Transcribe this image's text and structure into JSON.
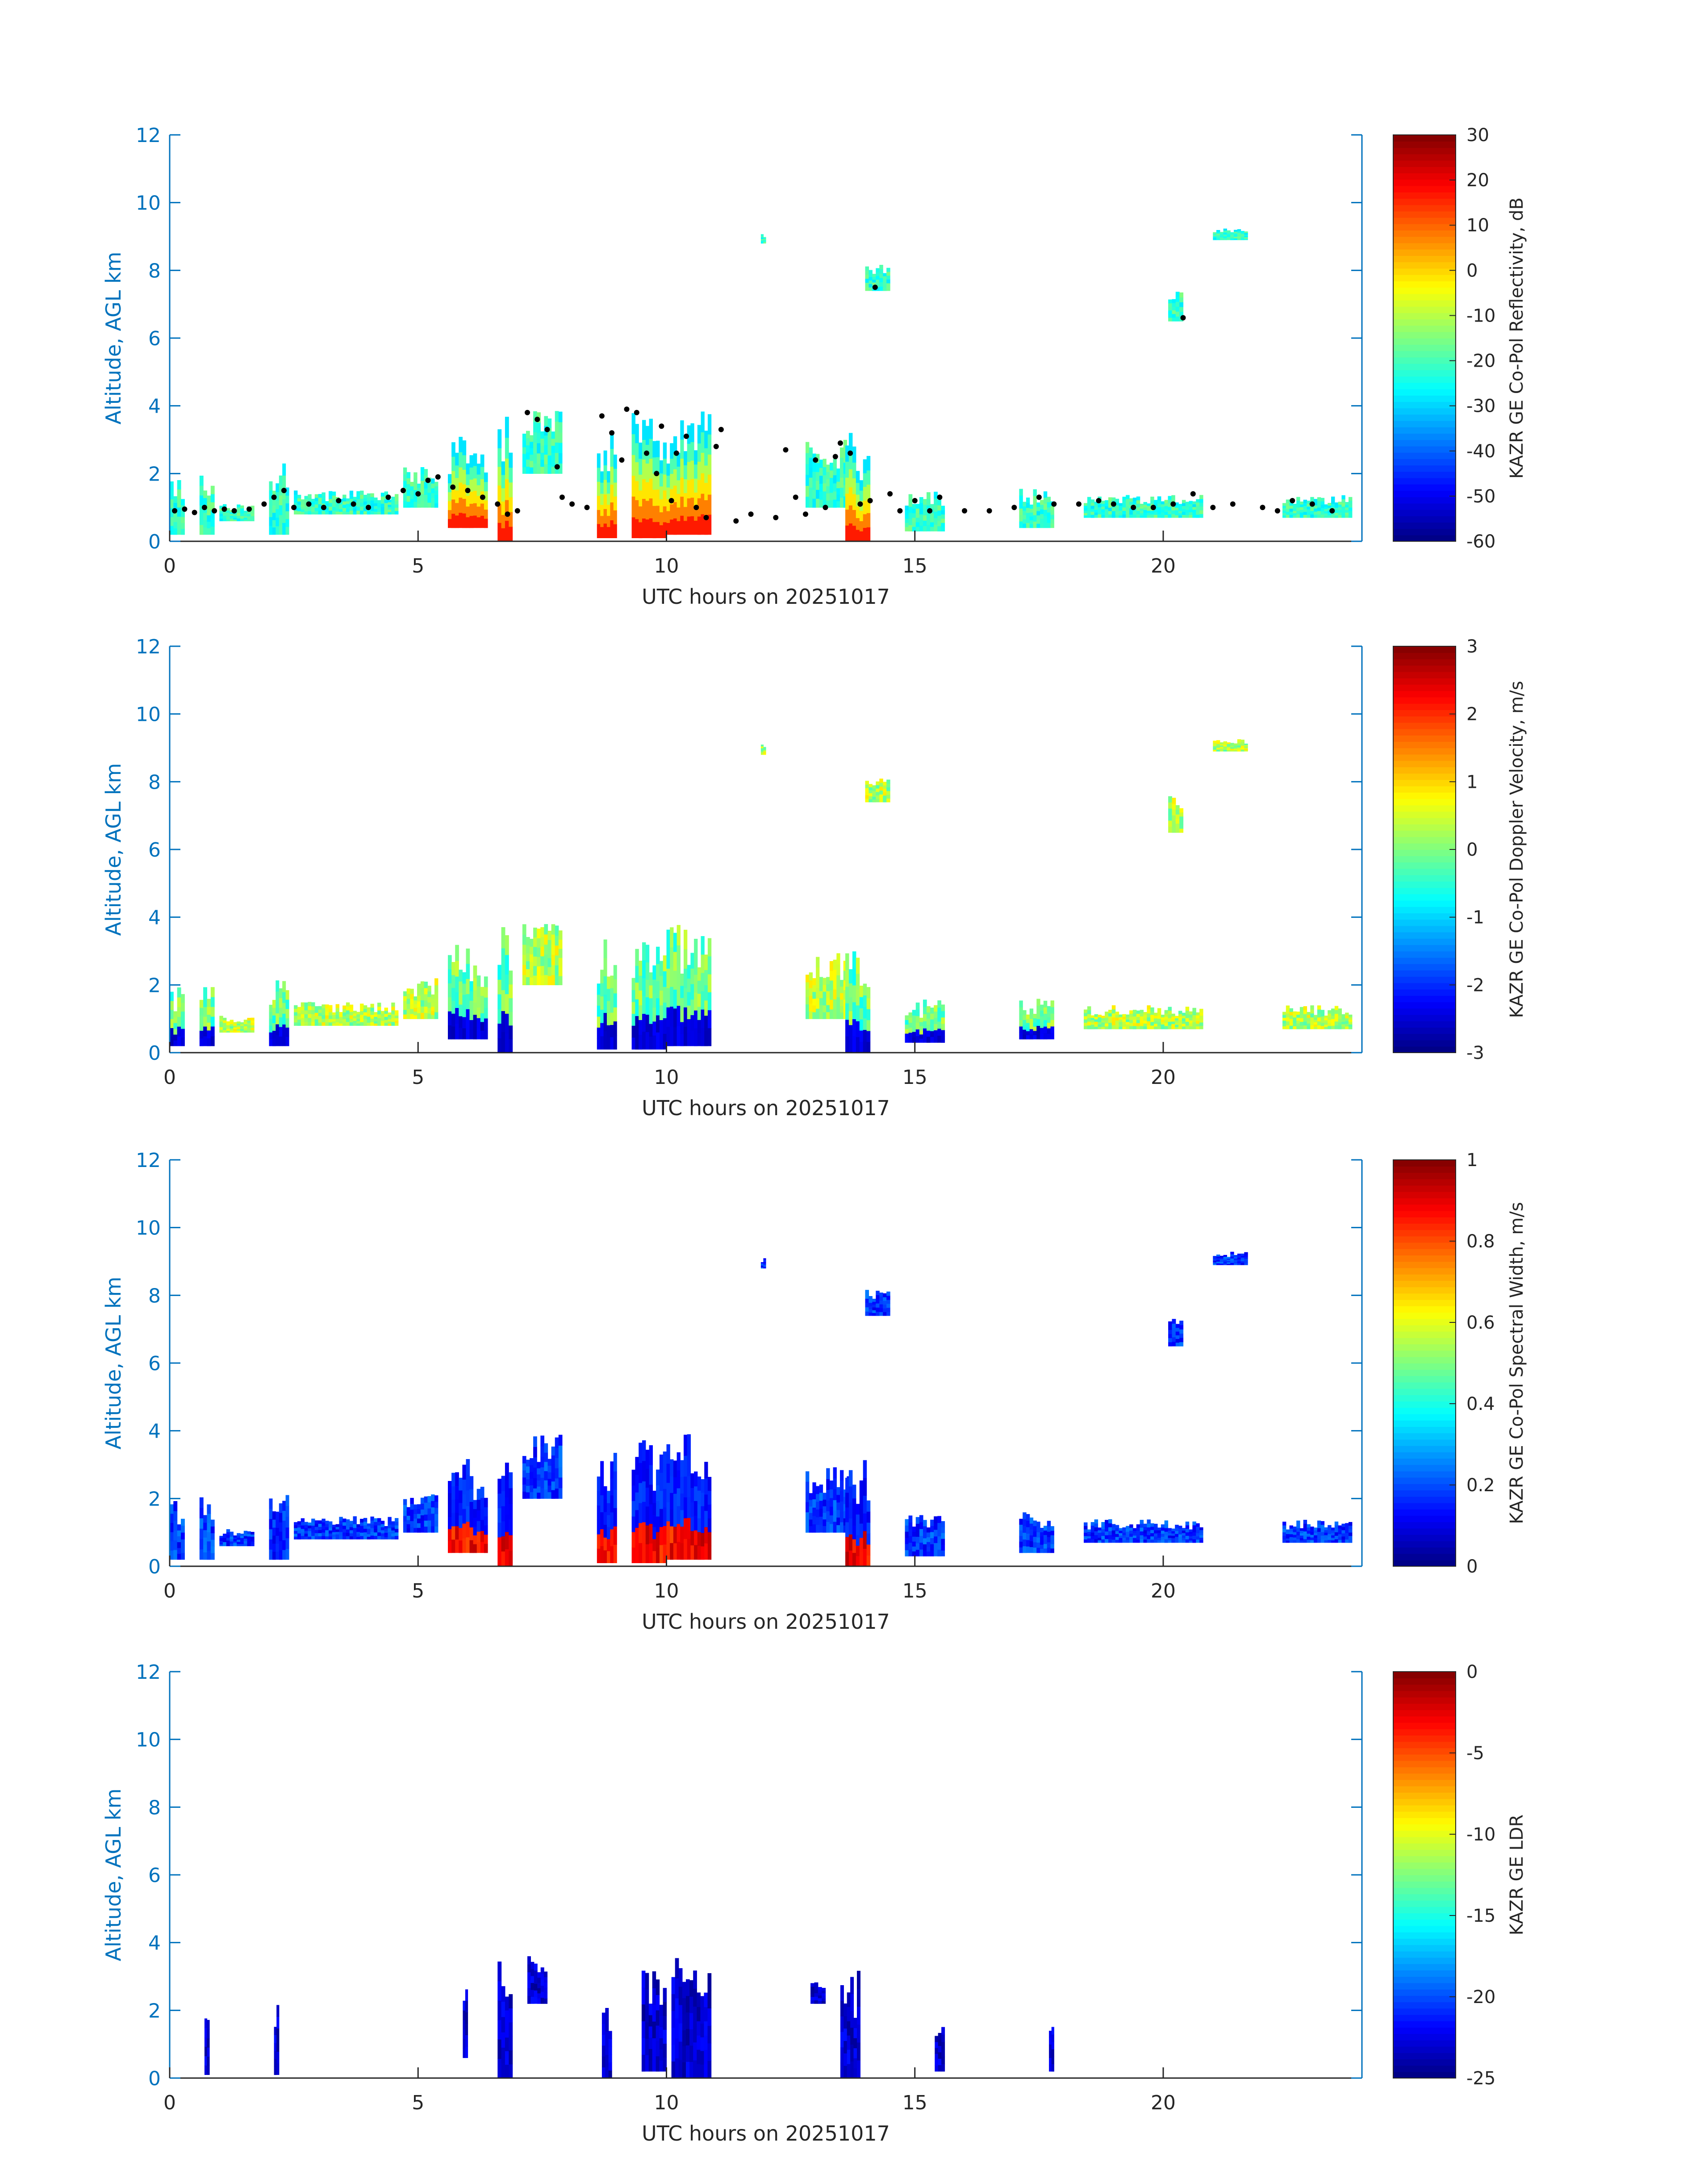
{
  "chart_data": [
    {
      "type": "heatmap",
      "title": "",
      "xlabel": "UTC hours on 20251017",
      "ylabel": "Altitude, AGL km",
      "xlim": [
        0,
        24
      ],
      "ylim": [
        0,
        12
      ],
      "x_ticks": [
        0,
        5,
        10,
        15,
        20
      ],
      "y_ticks": [
        0,
        2,
        4,
        6,
        8,
        10,
        12
      ],
      "grid": false,
      "colormap": "jet",
      "colorbar": {
        "label": "KAZR GE Co-Pol Reflectivity, dB",
        "min": -60,
        "max": 30,
        "ticks": [
          -60,
          -50,
          -40,
          -30,
          -20,
          -10,
          0,
          10,
          20,
          30
        ]
      },
      "overlay": {
        "type": "scatter",
        "color": "#000000",
        "points": [
          [
            0.1,
            0.9
          ],
          [
            0.3,
            0.95
          ],
          [
            0.5,
            0.85
          ],
          [
            0.7,
            1.0
          ],
          [
            0.9,
            0.9
          ],
          [
            1.1,
            0.95
          ],
          [
            1.3,
            0.9
          ],
          [
            1.6,
            0.95
          ],
          [
            1.9,
            1.1
          ],
          [
            2.1,
            1.3
          ],
          [
            2.3,
            1.5
          ],
          [
            2.5,
            1.0
          ],
          [
            2.8,
            1.1
          ],
          [
            3.1,
            1.0
          ],
          [
            3.4,
            1.2
          ],
          [
            3.7,
            1.1
          ],
          [
            4.0,
            1.0
          ],
          [
            4.4,
            1.3
          ],
          [
            4.7,
            1.5
          ],
          [
            5.0,
            1.4
          ],
          [
            5.2,
            1.8
          ],
          [
            5.4,
            1.9
          ],
          [
            5.7,
            1.6
          ],
          [
            6.0,
            1.5
          ],
          [
            6.3,
            1.3
          ],
          [
            6.6,
            1.1
          ],
          [
            6.8,
            0.8
          ],
          [
            7.0,
            0.9
          ],
          [
            7.2,
            3.8
          ],
          [
            7.4,
            3.6
          ],
          [
            7.6,
            3.3
          ],
          [
            7.8,
            2.2
          ],
          [
            7.9,
            1.3
          ],
          [
            8.1,
            1.1
          ],
          [
            8.4,
            1.0
          ],
          [
            8.7,
            3.7
          ],
          [
            8.9,
            3.2
          ],
          [
            9.1,
            2.4
          ],
          [
            9.2,
            3.9
          ],
          [
            9.4,
            3.8
          ],
          [
            9.6,
            2.6
          ],
          [
            9.8,
            2.0
          ],
          [
            9.9,
            3.4
          ],
          [
            10.1,
            1.2
          ],
          [
            10.2,
            2.6
          ],
          [
            10.4,
            3.1
          ],
          [
            10.6,
            1.0
          ],
          [
            10.8,
            0.7
          ],
          [
            11.0,
            2.8
          ],
          [
            11.1,
            3.3
          ],
          [
            11.4,
            0.6
          ],
          [
            11.7,
            0.8
          ],
          [
            12.2,
            0.7
          ],
          [
            12.4,
            2.7
          ],
          [
            12.6,
            1.3
          ],
          [
            12.8,
            0.8
          ],
          [
            13.0,
            2.4
          ],
          [
            13.2,
            1.0
          ],
          [
            13.4,
            2.5
          ],
          [
            13.5,
            2.9
          ],
          [
            13.7,
            2.6
          ],
          [
            13.9,
            1.1
          ],
          [
            14.1,
            1.2
          ],
          [
            14.5,
            1.4
          ],
          [
            14.7,
            0.9
          ],
          [
            15.0,
            1.2
          ],
          [
            15.3,
            0.9
          ],
          [
            15.5,
            1.3
          ],
          [
            16.0,
            0.9
          ],
          [
            16.5,
            0.9
          ],
          [
            17.0,
            1.0
          ],
          [
            17.5,
            1.3
          ],
          [
            17.8,
            1.1
          ],
          [
            18.3,
            1.1
          ],
          [
            18.7,
            1.2
          ],
          [
            19.0,
            1.1
          ],
          [
            19.4,
            1.0
          ],
          [
            19.8,
            1.0
          ],
          [
            20.2,
            1.1
          ],
          [
            20.6,
            1.4
          ],
          [
            21.0,
            1.0
          ],
          [
            21.4,
            1.1
          ],
          [
            22.0,
            1.0
          ],
          [
            22.3,
            0.9
          ],
          [
            22.6,
            1.2
          ],
          [
            23.0,
            1.1
          ],
          [
            23.4,
            0.9
          ],
          [
            14.2,
            7.5
          ],
          [
            20.4,
            6.6
          ]
        ]
      }
    },
    {
      "type": "heatmap",
      "title": "",
      "xlabel": "UTC hours on 20251017",
      "ylabel": "Altitude, AGL km",
      "xlim": [
        0,
        24
      ],
      "ylim": [
        0,
        12
      ],
      "x_ticks": [
        0,
        5,
        10,
        15,
        20
      ],
      "y_ticks": [
        0,
        2,
        4,
        6,
        8,
        10,
        12
      ],
      "grid": false,
      "colormap": "jet",
      "colorbar": {
        "label": "KAZR GE Co-Pol Doppler Velocity, m/s",
        "min": -3,
        "max": 3,
        "ticks": [
          -3,
          -2,
          -1,
          0,
          1,
          2,
          3
        ]
      }
    },
    {
      "type": "heatmap",
      "title": "",
      "xlabel": "UTC hours on 20251017",
      "ylabel": "Altitude, AGL km",
      "xlim": [
        0,
        24
      ],
      "ylim": [
        0,
        12
      ],
      "x_ticks": [
        0,
        5,
        10,
        15,
        20
      ],
      "y_ticks": [
        0,
        2,
        4,
        6,
        8,
        10,
        12
      ],
      "grid": false,
      "colormap": "jet",
      "colorbar": {
        "label": "KAZR GE Co-Pol Spectral Width, m/s",
        "min": 0,
        "max": 1,
        "ticks": [
          0,
          0.2,
          0.4,
          0.6,
          0.8,
          1
        ]
      }
    },
    {
      "type": "heatmap",
      "title": "",
      "xlabel": "UTC hours on 20251017",
      "ylabel": "Altitude, AGL km",
      "xlim": [
        0,
        24
      ],
      "ylim": [
        0,
        12
      ],
      "x_ticks": [
        0,
        5,
        10,
        15,
        20
      ],
      "y_ticks": [
        0,
        2,
        4,
        6,
        8,
        10,
        12
      ],
      "grid": false,
      "colormap": "jet",
      "colorbar": {
        "label": "KAZR GE LDR",
        "min": -25,
        "max": 0,
        "ticks": [
          -25,
          -20,
          -15,
          -10,
          -5,
          0
        ]
      }
    }
  ],
  "colors": {
    "axis": "#0072BD",
    "text": "#262626",
    "background": "#ffffff"
  }
}
